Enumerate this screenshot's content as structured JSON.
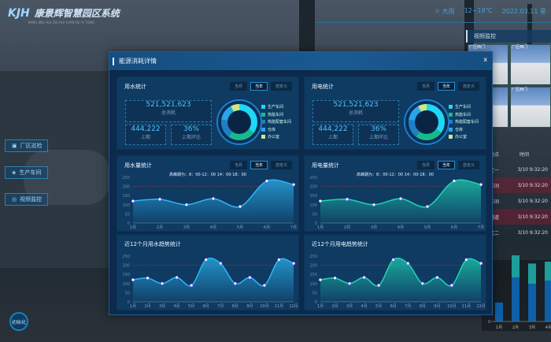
{
  "header": {
    "logo_mark": "KJH",
    "title": "康景辉智慧园区系统",
    "subtitle": "KANG JING HUI ZHI HUI YUAN QU XI TONG",
    "weather": "☼ 大雨",
    "temperature": "12~18℃",
    "date": "2022.03.11 星"
  },
  "nav": [
    {
      "label": "厂区巡检",
      "icon": "building-icon"
    },
    {
      "label": "生产车间",
      "icon": "factory-icon"
    },
    {
      "label": "视频监控",
      "icon": "camera-icon"
    }
  ],
  "init_button": "初始化",
  "right_panel": {
    "title": "视频监控",
    "cameras": [
      "厂区西门",
      "厂区西门",
      "厂区西门",
      "厂区西门"
    ],
    "table": {
      "headers": [
        "地点",
        "时间"
      ],
      "rows": [
        [
          "区一",
          "3/10 9:32:20"
        ],
        [
          "车间",
          "3/10 9:32:20"
        ],
        [
          "车间",
          "3/10 9:32:20"
        ],
        [
          "通道",
          "3/10 9:32:20"
        ],
        [
          "区二",
          "3/10 9:32:20"
        ]
      ]
    },
    "bar_chart": {
      "categories": [
        "1月",
        "2月",
        "3月",
        "4月"
      ],
      "y_zero": "0",
      "base": [
        30,
        70,
        60,
        65
      ],
      "top": [
        0,
        35,
        32,
        30
      ]
    }
  },
  "modal": {
    "title": "能源消耗详情",
    "close": "x"
  },
  "tabs": [
    "当月",
    "当年",
    "自定义"
  ],
  "legend": [
    {
      "label": "生产车间",
      "color": "#1fd8f5"
    },
    {
      "label": "热能车间",
      "color": "#19b98e"
    },
    {
      "label": "热能配套车间",
      "color": "#1f7fc6"
    },
    {
      "label": "仓库",
      "color": "#28a6ec"
    },
    {
      "label": "办公室",
      "color": "#c8ea8a"
    }
  ],
  "water": {
    "title": "用水统计",
    "total": "521,521,623",
    "total_label": "总消耗",
    "prev": "444,222",
    "prev_label": "上期",
    "ratio": "36%",
    "ratio_label": "上期环比",
    "shares": [
      35,
      25,
      17,
      15,
      8
    ]
  },
  "power": {
    "title": "用电统计",
    "total": "521,521,623",
    "total_label": "总消耗",
    "prev": "444,222",
    "prev_label": "上期",
    "ratio": "36%",
    "ratio_label": "上期环比",
    "shares": [
      35,
      25,
      17,
      15,
      8
    ]
  },
  "chart_data": [
    {
      "type": "area",
      "title": "用水量统计",
      "annotation": "高峰期为：8：00-12：00  14：00-18：00",
      "categories": [
        "1月",
        "2月",
        "3月",
        "4月",
        "5月",
        "6月",
        "7月"
      ],
      "values": [
        120,
        130,
        100,
        133,
        90,
        230,
        210
      ],
      "ylim": [
        0,
        250
      ],
      "yticks": [
        0,
        50,
        100,
        150,
        200,
        250
      ],
      "color": "#2ab8f5",
      "markline": 200
    },
    {
      "type": "area",
      "title": "用电量统计",
      "annotation": "高峰期为：8：00-12：00  14：00-18：00",
      "categories": [
        "1月",
        "2月",
        "3月",
        "4月",
        "5月",
        "6月",
        "7月"
      ],
      "values": [
        120,
        130,
        100,
        133,
        90,
        230,
        210
      ],
      "ylim": [
        0,
        250
      ],
      "yticks": [
        0,
        50,
        100,
        150,
        200,
        250
      ],
      "color": "#1ed6b4",
      "markline": 200
    },
    {
      "type": "area",
      "title": "近12个月用水趋势统计",
      "categories": [
        "1月",
        "2月",
        "3月",
        "4月",
        "5月",
        "6月",
        "7月",
        "8月",
        "9月",
        "10月",
        "11月",
        "12月"
      ],
      "values": [
        120,
        130,
        100,
        133,
        90,
        230,
        210,
        100,
        133,
        90,
        230,
        210
      ],
      "ylim": [
        0,
        250
      ],
      "yticks": [
        0,
        50,
        100,
        150,
        200,
        250
      ],
      "color": "#2ab8f5",
      "markline": 200
    },
    {
      "type": "area",
      "title": "近12个月用电趋势统计",
      "categories": [
        "1月",
        "2月",
        "3月",
        "4月",
        "5月",
        "6月",
        "7月",
        "8月",
        "9月",
        "10月",
        "11月",
        "12月"
      ],
      "values": [
        120,
        130,
        100,
        133,
        90,
        230,
        210,
        100,
        133,
        90,
        230,
        210
      ],
      "ylim": [
        0,
        250
      ],
      "yticks": [
        0,
        50,
        100,
        150,
        200,
        250
      ],
      "color": "#1ed6b4",
      "markline": 200
    }
  ]
}
